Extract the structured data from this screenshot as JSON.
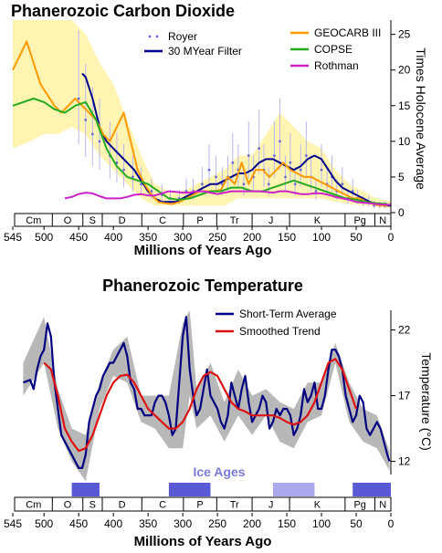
{
  "chart_data": [
    {
      "type": "line",
      "title": "Phanerozoic Carbon Dioxide",
      "xlabel": "Millions of Years Ago",
      "ylabel": "Times Holocene Average",
      "xlim": [
        545,
        0
      ],
      "ylim": [
        0,
        27
      ],
      "xticks": [
        545,
        500,
        450,
        400,
        350,
        300,
        250,
        200,
        150,
        100,
        50,
        0
      ],
      "yticks": [
        0,
        5,
        10,
        15,
        20,
        25
      ],
      "legend": "top",
      "periods": [
        {
          "label": "Cm",
          "start": 542,
          "end": 488
        },
        {
          "label": "O",
          "start": 488,
          "end": 444
        },
        {
          "label": "S",
          "start": 444,
          "end": 416
        },
        {
          "label": "D",
          "start": 416,
          "end": 359
        },
        {
          "label": "C",
          "start": 359,
          "end": 299
        },
        {
          "label": "P",
          "start": 299,
          "end": 251
        },
        {
          "label": "Tr",
          "start": 251,
          "end": 200
        },
        {
          "label": "J",
          "start": 200,
          "end": 146
        },
        {
          "label": "K",
          "start": 146,
          "end": 66
        },
        {
          "label": "Pg",
          "start": 66,
          "end": 23
        },
        {
          "label": "N",
          "start": 23,
          "end": 0
        }
      ],
      "series": [
        {
          "name": "Royer",
          "color": "#6a6ad6",
          "style": "scatter",
          "x": [
            450,
            440,
            430,
            420,
            405,
            395,
            385,
            372,
            360,
            345,
            330,
            318,
            305,
            295,
            285,
            272,
            262,
            252,
            243,
            235,
            228,
            220,
            212,
            205,
            198,
            190,
            183,
            176,
            168,
            160,
            152,
            145,
            138,
            130,
            122,
            115,
            108,
            100,
            92,
            85,
            78,
            70,
            62,
            55,
            48,
            40,
            32,
            24,
            16,
            8
          ],
          "y": [
            16,
            13,
            11,
            10,
            8,
            7,
            6,
            5,
            4,
            3,
            2.5,
            2,
            2,
            3,
            3,
            4,
            6,
            5,
            4,
            5,
            7,
            6,
            4,
            8,
            5,
            9,
            6,
            4,
            8,
            10,
            5,
            7,
            4,
            6,
            8,
            5,
            3,
            6,
            4,
            5,
            3,
            4,
            2,
            3,
            2,
            1.5,
            1.5,
            1,
            1,
            1
          ]
        },
        {
          "name": "30 MYear Filter",
          "color": "#00008b",
          "x": [
            445,
            440,
            430,
            420,
            410,
            400,
            390,
            380,
            370,
            360,
            350,
            340,
            330,
            320,
            310,
            300,
            290,
            280,
            270,
            260,
            250,
            240,
            230,
            220,
            210,
            200,
            190,
            180,
            170,
            160,
            150,
            140,
            130,
            120,
            110,
            100,
            90,
            80,
            70,
            60,
            50,
            40,
            30,
            20,
            10,
            0
          ],
          "y": [
            19.5,
            19,
            16,
            12,
            10,
            9,
            8,
            7,
            6,
            4.5,
            3,
            2,
            1.5,
            1.5,
            1.5,
            2,
            2.5,
            3,
            3.5,
            4,
            4,
            4.5,
            5,
            5.5,
            5.5,
            6,
            7,
            7.5,
            7.5,
            7,
            6.5,
            6,
            6.5,
            7.5,
            8,
            7.5,
            6,
            4.5,
            3.5,
            3,
            2.5,
            2,
            1.5,
            1.2,
            1,
            1
          ]
        },
        {
          "name": "GEOCARB III",
          "color": "#ff9900",
          "x": [
            545,
            535,
            525,
            515,
            505,
            495,
            485,
            475,
            465,
            455,
            445,
            435,
            425,
            415,
            405,
            395,
            385,
            375,
            365,
            355,
            345,
            335,
            325,
            315,
            305,
            295,
            285,
            275,
            265,
            255,
            245,
            235,
            225,
            215,
            205,
            195,
            185,
            175,
            165,
            155,
            145,
            135,
            125,
            115,
            105,
            95,
            85,
            75,
            65,
            55,
            45,
            35,
            25,
            15,
            5
          ],
          "y": [
            20,
            22,
            24,
            21,
            18,
            16.5,
            15,
            14,
            15,
            16,
            15,
            14,
            13,
            11,
            10,
            12,
            14,
            10,
            6,
            4,
            2.5,
            1.5,
            1.3,
            1.2,
            1.5,
            2,
            2.5,
            3,
            3,
            3,
            3.2,
            5,
            4,
            7,
            4,
            6,
            6,
            5,
            6,
            7,
            6,
            5.5,
            5,
            5,
            4.5,
            4,
            3.5,
            3,
            2.5,
            2,
            2,
            1.5,
            1.2,
            1,
            1
          ]
        },
        {
          "name": "COPSE",
          "color": "#22aa22",
          "x": [
            545,
            530,
            515,
            500,
            485,
            470,
            455,
            440,
            425,
            410,
            395,
            380,
            365,
            350,
            335,
            320,
            305,
            290,
            275,
            260,
            245,
            230,
            215,
            200,
            185,
            170,
            155,
            140,
            125,
            110,
            95,
            80,
            65,
            50,
            35,
            20,
            5
          ],
          "y": [
            15,
            15.5,
            16,
            15.5,
            14.5,
            14,
            15,
            15.5,
            13,
            9,
            6.5,
            5,
            4.5,
            4,
            3,
            2,
            1.8,
            2,
            2.5,
            3,
            3,
            3.5,
            3.5,
            3,
            3,
            3.5,
            4,
            4.5,
            4,
            3.5,
            3,
            2.5,
            2,
            1.8,
            1.5,
            1.3,
            1.2
          ]
        },
        {
          "name": "Rothman",
          "color": "#cc22cc",
          "x": [
            470,
            460,
            450,
            440,
            430,
            420,
            410,
            400,
            390,
            380,
            370,
            360,
            350,
            340,
            330,
            320,
            310,
            300,
            290,
            280,
            270,
            260,
            250,
            240,
            230,
            220,
            210,
            200,
            190,
            180,
            170,
            160,
            150,
            140,
            130,
            120,
            110,
            100,
            90,
            80,
            70,
            60,
            50,
            40,
            30,
            20,
            10,
            0
          ],
          "y": [
            2,
            2.2,
            2.6,
            2.8,
            2.7,
            2.3,
            2,
            2,
            2,
            2.2,
            2.5,
            2.6,
            2.4,
            2.4,
            2.7,
            3,
            2.9,
            2.8,
            2.8,
            3,
            3,
            2.8,
            2.6,
            2.8,
            3,
            3,
            3,
            3,
            3,
            2.9,
            2.8,
            3,
            3,
            2.8,
            2.6,
            2.6,
            2.7,
            2.7,
            2.5,
            2.2,
            2,
            1.8,
            1.5,
            1.4,
            1.3,
            1.2,
            1.1,
            1.1
          ]
        }
      ],
      "uncertainty_band": {
        "color": "#fff3a8",
        "x": [
          545,
          520,
          500,
          480,
          460,
          440,
          420,
          400,
          380,
          360,
          340,
          320,
          300,
          280,
          260,
          240,
          220,
          200,
          180,
          160,
          140,
          120,
          100,
          80,
          60,
          40,
          20,
          0
        ],
        "upper": [
          27,
          27,
          27,
          27,
          27,
          25,
          21,
          18,
          13,
          8,
          4,
          3,
          3,
          4,
          5,
          6,
          8,
          8,
          11,
          14,
          12,
          10,
          9,
          6,
          4,
          3,
          2,
          1.5
        ],
        "lower": [
          9,
          10,
          11,
          11,
          12,
          11,
          8,
          6,
          4,
          2,
          1,
          1,
          1,
          1,
          1,
          1,
          2,
          2,
          2,
          2,
          2,
          2,
          2,
          1.5,
          1.2,
          1,
          0.8,
          0.6
        ]
      }
    },
    {
      "type": "line",
      "title": "Phanerozoic Temperature",
      "xlabel": "Millions of Years Ago",
      "ylabel": "Temperature (°C)",
      "xlim": [
        545,
        0
      ],
      "ylim": [
        11,
        23.5
      ],
      "xticks": [
        545,
        500,
        450,
        400,
        350,
        300,
        250,
        200,
        150,
        100,
        50,
        0
      ],
      "yticks": [
        12,
        17,
        22
      ],
      "legend": "top-right",
      "annotations": [
        "Ice Ages"
      ],
      "ice_ages": [
        [
          460,
          420
        ],
        [
          320,
          260
        ],
        [
          170,
          110
        ],
        [
          55,
          0
        ]
      ],
      "ice_age_colors": [
        "#5959d6",
        "#5959d6",
        "#a9a9ec",
        "#5959d6"
      ],
      "series": [
        {
          "name": "Short-Term Average",
          "color": "#000080",
          "x": [
            530,
            520,
            515,
            510,
            505,
            500,
            495,
            490,
            485,
            480,
            475,
            470,
            465,
            460,
            455,
            450,
            445,
            440,
            435,
            430,
            425,
            420,
            415,
            410,
            405,
            400,
            395,
            390,
            385,
            380,
            375,
            370,
            365,
            360,
            355,
            350,
            345,
            340,
            335,
            330,
            325,
            320,
            315,
            310,
            305,
            300,
            295,
            290,
            285,
            280,
            275,
            270,
            265,
            260,
            255,
            250,
            245,
            240,
            235,
            230,
            225,
            220,
            215,
            210,
            205,
            200,
            195,
            190,
            185,
            180,
            175,
            170,
            165,
            160,
            155,
            150,
            145,
            140,
            135,
            130,
            125,
            120,
            115,
            110,
            105,
            100,
            95,
            90,
            85,
            80,
            75,
            70,
            65,
            60,
            55,
            50,
            45,
            40,
            35,
            30,
            25,
            20,
            15,
            10,
            5,
            2
          ],
          "y": [
            18,
            18.2,
            17.5,
            19,
            20,
            20.5,
            22.5,
            21.5,
            18,
            16,
            14,
            13.5,
            13,
            12.5,
            12,
            11.5,
            11.5,
            12.5,
            15,
            16,
            17,
            17.5,
            18.5,
            19,
            19.5,
            19.5,
            20,
            20.5,
            21,
            20,
            18,
            17.5,
            16,
            16,
            15.5,
            15.5,
            15.5,
            16.5,
            17,
            17,
            16.5,
            15.5,
            14,
            14.5,
            18,
            21.5,
            23,
            19,
            17,
            15.5,
            16,
            17.5,
            19,
            17,
            16.5,
            16,
            15,
            14.5,
            15.5,
            18,
            17,
            16,
            17.5,
            18.5,
            16.5,
            15,
            15.5,
            16,
            17,
            16.5,
            14.5,
            15,
            16,
            15.5,
            16,
            16,
            15.5,
            14,
            14.5,
            15.5,
            17.5,
            16.5,
            17,
            18,
            16,
            16,
            17,
            19,
            20.5,
            20.5,
            20,
            19,
            17,
            16,
            15,
            15.5,
            17,
            16.5,
            14.5,
            14,
            14.5,
            15,
            14.5,
            13.5,
            12.5,
            12
          ]
        },
        {
          "name": "Smoothed Trend",
          "color": "#dd1111",
          "x": [
            500,
            490,
            480,
            470,
            460,
            450,
            440,
            430,
            420,
            410,
            400,
            390,
            380,
            370,
            360,
            350,
            340,
            330,
            320,
            310,
            300,
            290,
            280,
            270,
            260,
            250,
            240,
            230,
            220,
            210,
            200,
            190,
            180,
            170,
            160,
            150,
            140,
            130,
            120,
            110,
            100,
            90,
            80,
            70,
            60,
            50
          ],
          "y": [
            19.5,
            19,
            17,
            14.5,
            13.5,
            12.8,
            13,
            14,
            15.5,
            17,
            18,
            18.5,
            18.6,
            18,
            17,
            16,
            15.5,
            15,
            14.5,
            14.5,
            15,
            16,
            17.5,
            18.5,
            18.8,
            18.5,
            17.5,
            16.5,
            16,
            15.8,
            15.5,
            15.5,
            15.5,
            15.5,
            15.3,
            15,
            14.8,
            15,
            15.5,
            16.5,
            18,
            19.5,
            19.8,
            19,
            17.5,
            16
          ]
        }
      ],
      "uncertainty_band": {
        "color": "#b0b0b0",
        "x": [
          530,
          500,
          480,
          460,
          440,
          420,
          400,
          380,
          360,
          340,
          320,
          300,
          290,
          280,
          260,
          240,
          220,
          200,
          180,
          160,
          140,
          120,
          100,
          80,
          60,
          40,
          20,
          2
        ],
        "upper": [
          19.5,
          23,
          17.5,
          14.5,
          14,
          18,
          20.5,
          21.5,
          17,
          17,
          17,
          22.5,
          23.5,
          17.5,
          19.5,
          16.5,
          19,
          17,
          17.5,
          16.5,
          16,
          18,
          18,
          21,
          18,
          16,
          15.5,
          12.8
        ],
        "lower": [
          17,
          19.5,
          14.5,
          12,
          10.5,
          16,
          18.5,
          18,
          15,
          14.5,
          13,
          13,
          17,
          14.5,
          15.5,
          13.5,
          15.5,
          14,
          15.5,
          13.5,
          13,
          15,
          15.5,
          19.5,
          15,
          13.5,
          13,
          11.3
        ]
      }
    }
  ]
}
